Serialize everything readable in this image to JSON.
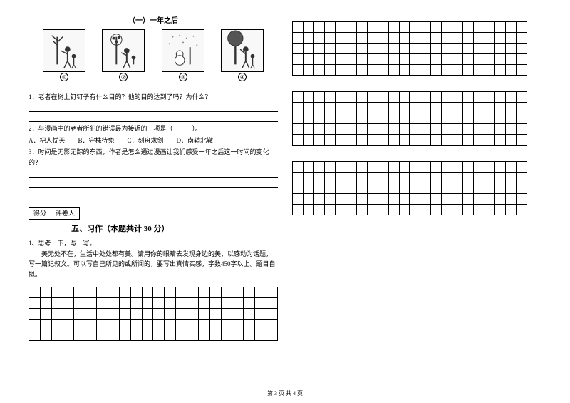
{
  "reading": {
    "title": "（一）一年之后",
    "panels": [
      "①",
      "②",
      "③",
      "④"
    ],
    "q1": "1．老者在树上钉钉子有什么目的？他的目的达到了吗？为什么？",
    "q2": "2．与漫画中的老者所犯的错误最为接近的一项是（　　　）。",
    "q2_options": "A．杞人忧天　　B．守株待兔　　C．刻舟求剑　　D．南辕北辙",
    "q3": "3．时间是无影无踪的东西，作者是怎么通过漫画让我们感受一年之后这一时间的变化的？"
  },
  "section5": {
    "score_label1": "得分",
    "score_label2": "评卷人",
    "title": "五、习作（本题共计 30 分）",
    "lead": "1、思考一下，写一写。",
    "prompt": "美无处不在，生活中处处都有美。请用你的眼睛去发现身边的美，以感动为话题，写一篇记叙文。可以写自己所见的或所闻的，要写出真情实感，字数450字以上。题目自拟。"
  },
  "footer": "第 3 页  共 4 页",
  "grid": {
    "left_rows": 5,
    "left_cols": 22,
    "right_block1_rows": 5,
    "right_block2_rows": 5,
    "right_block3_rows": 5,
    "right_cols": 22
  }
}
